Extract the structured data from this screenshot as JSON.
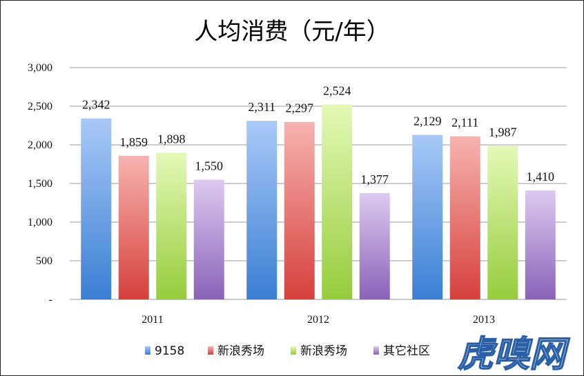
{
  "chart_data": {
    "type": "bar",
    "title": "人均消费（元/年）",
    "categories": [
      "2011",
      "2012",
      "2013"
    ],
    "series": [
      {
        "name": "9158",
        "values": [
          2342,
          2311,
          2129
        ],
        "labels": [
          "2,342",
          "2,311",
          "2,129"
        ],
        "color_top": "#a9c9f7",
        "color_bottom": "#3a7fd4"
      },
      {
        "name": "新浪秀场",
        "values": [
          1859,
          2297,
          2111
        ],
        "labels": [
          "1,859",
          "2,297",
          "2,111"
        ],
        "color_top": "#f7b3b0",
        "color_bottom": "#d6403c"
      },
      {
        "name": "新浪秀场",
        "values": [
          1898,
          2524,
          1987
        ],
        "labels": [
          "1,898",
          "2,524",
          "1,987"
        ],
        "color_top": "#e4f9b6",
        "color_bottom": "#96cc3c"
      },
      {
        "name": "其它社区",
        "values": [
          1550,
          1377,
          1410
        ],
        "labels": [
          "1,550",
          "1,377",
          "1,410"
        ],
        "color_top": "#dccaf0",
        "color_bottom": "#8a62b8"
      }
    ],
    "ylim": [
      0,
      3000
    ],
    "yticks": [
      0,
      500,
      1000,
      1500,
      2000,
      2500,
      3000
    ],
    "ytick_labels": [
      "-",
      "500",
      "1,000",
      "1,500",
      "2,000",
      "2,500",
      "3,000"
    ],
    "grid": true,
    "legend_position": "bottom"
  },
  "watermark": "虎嗅网"
}
